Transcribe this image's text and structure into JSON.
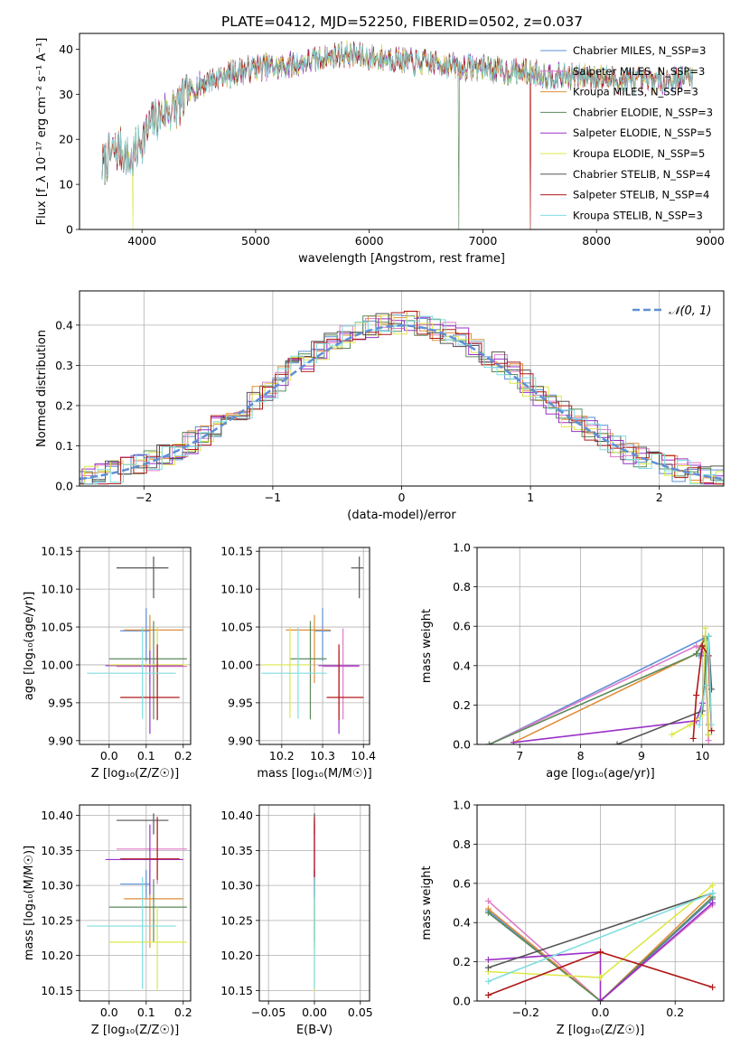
{
  "title": "PLATE=0412, MJD=52250, FIBERID=0502, z=0.037",
  "colors": [
    "#5e8fd6",
    "#e07ac8",
    "#e08e3a",
    "#5b8a5b",
    "#9b30c8",
    "#dde84a",
    "#555555",
    "#b01818",
    "#80dde0"
  ],
  "chart_data": [
    {
      "id": "spectrum",
      "type": "line",
      "xlabel": "wavelength [Angstrom, rest frame]",
      "ylabel": "Flux [f_λ 10⁻¹⁷ erg cm⁻² s⁻¹ A⁻¹]",
      "xlim": [
        3450,
        9120
      ],
      "ylim": [
        0,
        43.5
      ],
      "xticks": [
        4000,
        5000,
        6000,
        7000,
        8000,
        9000
      ],
      "yticks": [
        0,
        10,
        20,
        30,
        40
      ],
      "grid": false,
      "legend_position": "top-right",
      "continuum": {
        "x": [
          3650,
          3700,
          3800,
          3900,
          4000,
          4100,
          4200,
          4300,
          4400,
          4500,
          4700,
          5000,
          5200,
          5400,
          5600,
          5800,
          6000,
          6200,
          6400,
          6600,
          6800,
          7000,
          7200,
          7400,
          7600,
          7800,
          8000,
          8200,
          8400,
          8600,
          8850
        ],
        "y": [
          14,
          16,
          18,
          15,
          20,
          24,
          26,
          27,
          30,
          32,
          34,
          36,
          36,
          37,
          38,
          39,
          38,
          38,
          37,
          37,
          36,
          36,
          35,
          35,
          34,
          34,
          34,
          33,
          33,
          33,
          34
        ]
      },
      "series": [
        {
          "name": "Chabrier MILES, N_SSP=3",
          "color": "#5e8fd6"
        },
        {
          "name": "Salpeter MILES, N_SSP=3",
          "color": "#e07ac8"
        },
        {
          "name": "Kroupa MILES, N_SSP=3",
          "color": "#e08e3a"
        },
        {
          "name": "Chabrier ELODIE, N_SSP=3",
          "color": "#5b8a5b"
        },
        {
          "name": "Salpeter ELODIE, N_SSP=5",
          "color": "#9b30c8"
        },
        {
          "name": "Kroupa ELODIE, N_SSP=5",
          "color": "#dde84a"
        },
        {
          "name": "Chabrier STELIB, N_SSP=4",
          "color": "#555555"
        },
        {
          "name": "Salpeter STELIB, N_SSP=4",
          "color": "#b01818"
        },
        {
          "name": "Kroupa STELIB, N_SSP=3",
          "color": "#80dde0"
        }
      ]
    },
    {
      "id": "residuals",
      "type": "line",
      "xlabel": "(data-model)/error",
      "ylabel": "Normed distribution",
      "xlim": [
        -2.5,
        2.5
      ],
      "ylim": [
        0,
        0.485
      ],
      "xticks": [
        -2,
        -1,
        0,
        1,
        2
      ],
      "yticks": [
        0.0,
        0.1,
        0.2,
        0.3,
        0.4
      ],
      "grid": true,
      "bin_width": 0.1,
      "legend": "𝒩(0, 1)",
      "legend_position": "top-right"
    },
    {
      "id": "Z-age",
      "type": "scatter",
      "xlabel": "Z [log₁₀(Z/Z☉)]",
      "ylabel": "age  [log₁₀(age/yr)]",
      "xlim": [
        -0.08,
        0.22
      ],
      "ylim": [
        9.895,
        10.155
      ],
      "xticks": [
        0.0,
        0.1,
        0.2
      ],
      "yticks": [
        9.9,
        9.95,
        10.0,
        10.05,
        10.1,
        10.15
      ],
      "grid": true,
      "points": [
        {
          "x": 0.1,
          "y": 10.045,
          "xerr": [
            0.07,
            0.01
          ],
          "yerr": [
            0.04,
            0.03
          ]
        },
        {
          "x": 0.13,
          "y": 9.998,
          "xerr": [
            0.11,
            0.08
          ],
          "yerr": [
            0.07,
            0.05
          ]
        },
        {
          "x": 0.11,
          "y": 10.046,
          "xerr": [
            0.07,
            0.09
          ],
          "yerr": [
            0.07,
            0.02
          ]
        },
        {
          "x": 0.12,
          "y": 10.008,
          "xerr": [
            0.12,
            0.09
          ],
          "yerr": [
            0.08,
            0.05
          ]
        },
        {
          "x": 0.11,
          "y": 9.999,
          "xerr": [
            0.12,
            0.09
          ],
          "yerr": [
            0.09,
            0.02
          ]
        },
        {
          "x": 0.13,
          "y": 10.0,
          "xerr": [
            0.13,
            0.08
          ],
          "yerr": [
            0.07,
            0.05
          ]
        },
        {
          "x": 0.12,
          "y": 10.128,
          "xerr": [
            0.1,
            0.04
          ],
          "yerr": [
            0.04,
            0.015
          ]
        },
        {
          "x": 0.13,
          "y": 9.957,
          "xerr": [
            0.1,
            0.06
          ],
          "yerr": [
            0.03,
            0.07
          ]
        },
        {
          "x": 0.09,
          "y": 9.989,
          "xerr": [
            0.15,
            0.09
          ],
          "yerr": [
            0.06,
            0.06
          ]
        }
      ]
    },
    {
      "id": "mass-age",
      "type": "scatter",
      "xlabel": "mass [log₁₀(M/M☉)]",
      "ylabel": "",
      "xlim": [
        10.145,
        10.415
      ],
      "ylim": [
        9.895,
        10.155
      ],
      "xticks": [
        10.2,
        10.3,
        10.4
      ],
      "yticks": [
        9.9,
        9.95,
        10.0,
        10.05,
        10.1,
        10.15
      ],
      "grid": true,
      "points": [
        {
          "x": 10.3,
          "y": 10.045,
          "xerr": [
            0.02,
            0.02
          ],
          "yerr": [
            0.04,
            0.03
          ]
        },
        {
          "x": 10.35,
          "y": 9.998,
          "xerr": [
            0.05,
            0.04
          ],
          "yerr": [
            0.07,
            0.05
          ]
        },
        {
          "x": 10.28,
          "y": 10.046,
          "xerr": [
            0.07,
            0.04
          ],
          "yerr": [
            0.07,
            0.02
          ]
        },
        {
          "x": 10.27,
          "y": 10.008,
          "xerr": [
            0.05,
            0.04
          ],
          "yerr": [
            0.08,
            0.05
          ]
        },
        {
          "x": 10.34,
          "y": 9.999,
          "xerr": [
            0.05,
            0.05
          ],
          "yerr": [
            0.09,
            0.02
          ]
        },
        {
          "x": 10.22,
          "y": 10.0,
          "xerr": [
            0.07,
            0.05
          ],
          "yerr": [
            0.07,
            0.05
          ]
        },
        {
          "x": 10.39,
          "y": 10.128,
          "xerr": [
            0.02,
            0.01
          ],
          "yerr": [
            0.04,
            0.015
          ]
        },
        {
          "x": 10.34,
          "y": 9.957,
          "xerr": [
            0.03,
            0.06
          ],
          "yerr": [
            0.03,
            0.07
          ]
        },
        {
          "x": 10.24,
          "y": 9.989,
          "xerr": [
            0.09,
            0.07
          ],
          "yerr": [
            0.06,
            0.06
          ]
        }
      ]
    },
    {
      "id": "age-weight",
      "type": "line",
      "xlabel": "age  [log₁₀(age/yr)]",
      "ylabel": "mass weight",
      "xlim": [
        6.3,
        10.35
      ],
      "ylim": [
        0,
        1
      ],
      "xticks": [
        7,
        8,
        9,
        10
      ],
      "yticks": [
        0.0,
        0.2,
        0.4,
        0.6,
        0.8,
        1.0
      ],
      "grid": true,
      "series": [
        {
          "x": [
            6.5,
            10.1,
            9.95
          ],
          "y": [
            0.0,
            0.55,
            0.45
          ]
        },
        {
          "x": [
            6.5,
            9.9,
            10.05,
            10.1
          ],
          "y": [
            0.0,
            0.5,
            0.46,
            0.02
          ]
        },
        {
          "x": [
            6.9,
            9.9,
            10.05,
            10.1
          ],
          "y": [
            0.01,
            0.46,
            0.55,
            0.1
          ]
        },
        {
          "x": [
            6.5,
            9.9,
            10.05,
            10.1
          ],
          "y": [
            0.0,
            0.46,
            0.54,
            0.05
          ]
        },
        {
          "x": [
            6.9,
            9.9,
            10.0,
            10.05,
            10.1
          ],
          "y": [
            0.01,
            0.12,
            0.21,
            0.45,
            0.05
          ]
        },
        {
          "x": [
            9.5,
            9.8,
            10.0,
            10.05,
            10.1
          ],
          "y": [
            0.05,
            0.1,
            0.15,
            0.59,
            0.05
          ]
        },
        {
          "x": [
            8.6,
            10.0,
            10.1,
            10.15
          ],
          "y": [
            0.0,
            0.17,
            0.55,
            0.28
          ]
        },
        {
          "x": [
            9.85,
            9.9,
            10.0,
            10.1,
            10.15
          ],
          "y": [
            0.03,
            0.25,
            0.5,
            0.45,
            0.07
          ]
        },
        {
          "x": [
            9.95,
            10.05,
            10.1,
            10.15
          ],
          "y": [
            0.1,
            0.3,
            0.55,
            0.1
          ]
        }
      ]
    },
    {
      "id": "Z-mass",
      "type": "scatter",
      "xlabel": "Z [log₁₀(Z/Z☉)]",
      "ylabel": "mass [log₁₀(M/M☉)]",
      "xlim": [
        -0.08,
        0.22
      ],
      "ylim": [
        10.135,
        10.415
      ],
      "xticks": [
        0.0,
        0.1,
        0.2
      ],
      "yticks": [
        10.15,
        10.2,
        10.25,
        10.3,
        10.35,
        10.4
      ],
      "grid": true,
      "points": [
        {
          "x": 0.1,
          "y": 10.302,
          "xerr": [
            0.07,
            0.01
          ],
          "yerr": [
            0.02,
            0.02
          ]
        },
        {
          "x": 0.13,
          "y": 10.352,
          "xerr": [
            0.11,
            0.08
          ],
          "yerr": [
            0.05,
            0.04
          ]
        },
        {
          "x": 0.11,
          "y": 10.281,
          "xerr": [
            0.07,
            0.09
          ],
          "yerr": [
            0.07,
            0.04
          ]
        },
        {
          "x": 0.12,
          "y": 10.269,
          "xerr": [
            0.12,
            0.09
          ],
          "yerr": [
            0.05,
            0.04
          ]
        },
        {
          "x": 0.11,
          "y": 10.337,
          "xerr": [
            0.12,
            0.09
          ],
          "yerr": [
            0.05,
            0.05
          ]
        },
        {
          "x": 0.13,
          "y": 10.219,
          "xerr": [
            0.13,
            0.08
          ],
          "yerr": [
            0.07,
            0.05
          ]
        },
        {
          "x": 0.12,
          "y": 10.393,
          "xerr": [
            0.1,
            0.04
          ],
          "yerr": [
            0.02,
            0.01
          ]
        },
        {
          "x": 0.13,
          "y": 10.338,
          "xerr": [
            0.1,
            0.06
          ],
          "yerr": [
            0.03,
            0.06
          ]
        },
        {
          "x": 0.09,
          "y": 10.242,
          "xerr": [
            0.15,
            0.09
          ],
          "yerr": [
            0.09,
            0.07
          ]
        }
      ]
    },
    {
      "id": "ebv-mass",
      "type": "scatter",
      "xlabel": "E(B-V)",
      "ylabel": "",
      "xlim": [
        -0.06,
        0.06
      ],
      "ylim": [
        10.135,
        10.415
      ],
      "xticks": [
        -0.05,
        0.0,
        0.05
      ],
      "yticks": [
        10.15,
        10.2,
        10.25,
        10.3,
        10.35,
        10.4
      ],
      "grid": true,
      "points": [
        {
          "x": 0.0,
          "y": 10.302,
          "yerr": [
            0.02,
            0.02
          ]
        },
        {
          "x": 0.0,
          "y": 10.352,
          "yerr": [
            0.05,
            0.04
          ]
        },
        {
          "x": 0.0,
          "y": 10.281,
          "yerr": [
            0.07,
            0.04
          ]
        },
        {
          "x": 0.0,
          "y": 10.269,
          "yerr": [
            0.05,
            0.04
          ]
        },
        {
          "x": 0.0,
          "y": 10.337,
          "yerr": [
            0.05,
            0.05
          ]
        },
        {
          "x": 0.0,
          "y": 10.219,
          "yerr": [
            0.07,
            0.05
          ]
        },
        {
          "x": 0.0,
          "y": 10.393,
          "yerr": [
            0.02,
            0.01
          ]
        },
        {
          "x": 0.0,
          "y": 10.338,
          "yerr": [
            0.03,
            0.06
          ]
        },
        {
          "x": 0.0,
          "y": 10.242,
          "yerr": [
            0.09,
            0.07
          ]
        }
      ]
    },
    {
      "id": "Z-weight",
      "type": "line",
      "xlabel": "Z [log₁₀(Z/Z☉)]",
      "ylabel": "mass weight",
      "xlim": [
        -0.33,
        0.33
      ],
      "ylim": [
        0,
        1
      ],
      "xticks": [
        -0.2,
        0.0,
        0.2
      ],
      "yticks": [
        0.0,
        0.2,
        0.4,
        0.6,
        0.8,
        1.0
      ],
      "grid": true,
      "series": [
        {
          "x": [
            -0.3,
            0.0,
            0.3
          ],
          "y": [
            0.46,
            0.0,
            0.52
          ]
        },
        {
          "x": [
            -0.3,
            0.0,
            0.3
          ],
          "y": [
            0.51,
            0.0,
            0.49
          ]
        },
        {
          "x": [
            -0.3,
            0.0,
            0.3
          ],
          "y": [
            0.47,
            0.0,
            0.55
          ]
        },
        {
          "x": [
            -0.3,
            0.0,
            0.3
          ],
          "y": [
            0.45,
            0.0,
            0.53
          ]
        },
        {
          "x": [
            -0.3,
            0.0,
            0.0,
            0.3
          ],
          "y": [
            0.21,
            0.25,
            0.0,
            0.5
          ]
        },
        {
          "x": [
            -0.3,
            0.0,
            0.3
          ],
          "y": [
            0.15,
            0.12,
            0.59
          ]
        },
        {
          "x": [
            -0.3,
            0.3
          ],
          "y": [
            0.17,
            0.55
          ]
        },
        {
          "x": [
            -0.3,
            0.0,
            0.3
          ],
          "y": [
            0.03,
            0.25,
            0.07
          ]
        },
        {
          "x": [
            -0.3,
            0.3
          ],
          "y": [
            0.1,
            0.55
          ]
        }
      ]
    }
  ]
}
